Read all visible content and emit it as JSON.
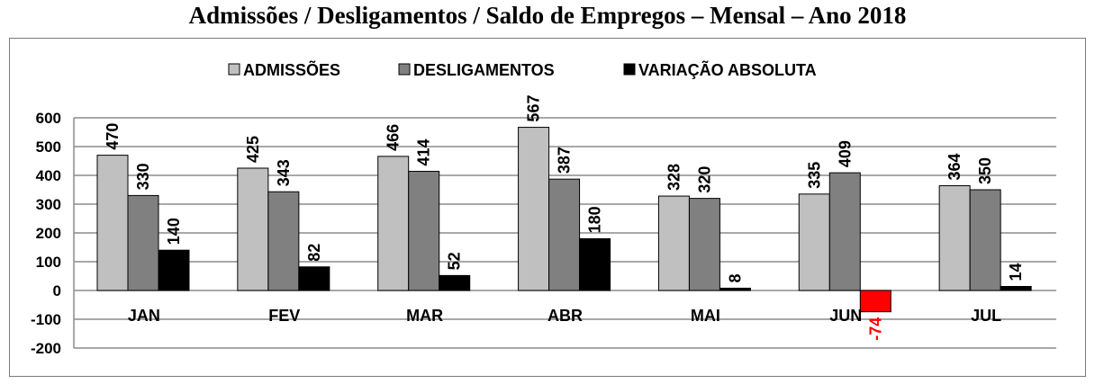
{
  "chart_data": {
    "type": "bar",
    "title": "Admissões / Desligamentos / Saldo de Empregos – Mensal – Ano 2018",
    "categories": [
      "JAN",
      "FEV",
      "MAR",
      "ABR",
      "MAI",
      "JUN",
      "JUL"
    ],
    "series": [
      {
        "name": "ADMISSÕES",
        "values": [
          470,
          425,
          466,
          567,
          328,
          335,
          364
        ],
        "color": "#c0c0c0"
      },
      {
        "name": "DESLIGAMENTOS",
        "values": [
          330,
          343,
          414,
          387,
          320,
          409,
          350
        ],
        "color": "#808080"
      },
      {
        "name": "VARIAÇÃO ABSOLUTA",
        "values": [
          140,
          82,
          52,
          180,
          8,
          -74,
          14
        ],
        "color": "#000000",
        "negative_color": "#ff0000"
      }
    ],
    "yticks": [
      600,
      500,
      400,
      300,
      200,
      100,
      0,
      -100,
      -200
    ],
    "ylim": [
      -200,
      600
    ],
    "grid": true,
    "legend": "top"
  }
}
